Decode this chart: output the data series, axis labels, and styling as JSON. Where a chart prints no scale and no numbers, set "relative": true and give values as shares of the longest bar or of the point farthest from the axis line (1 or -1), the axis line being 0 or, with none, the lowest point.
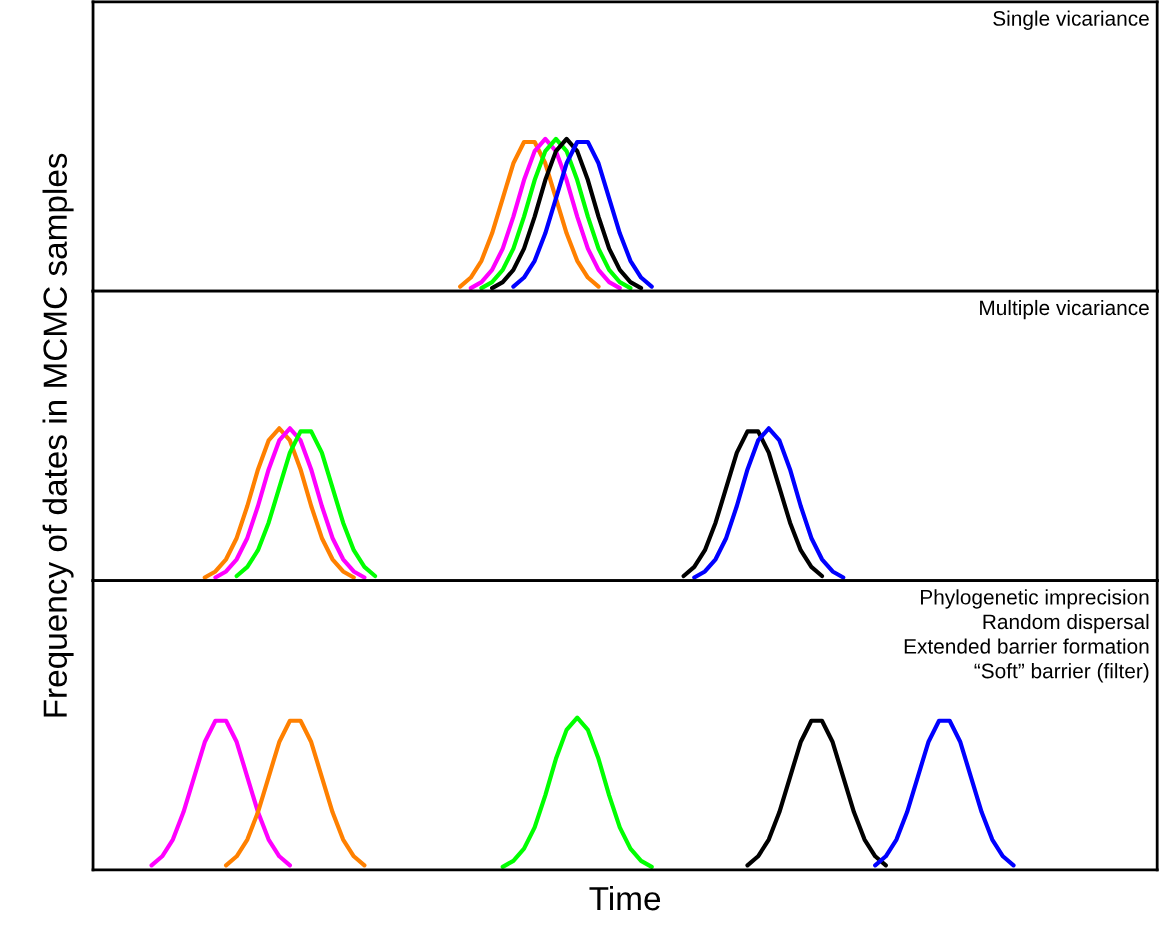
{
  "chart_data": [
    {
      "type": "line",
      "relative": true,
      "annotations": [
        "Single vicariance"
      ],
      "categories": [
        null,
        null,
        null,
        null,
        null,
        null,
        null,
        null,
        null,
        null,
        null,
        null,
        null,
        null,
        null,
        null,
        null,
        null,
        null,
        null,
        null,
        null,
        null,
        null,
        null,
        null,
        null,
        null,
        null,
        null,
        null,
        null,
        null,
        null,
        null,
        null,
        null,
        null,
        null,
        null,
        null,
        null,
        null,
        null,
        null,
        null,
        null,
        null,
        null,
        null,
        null,
        null,
        null,
        null,
        null,
        null,
        null,
        null,
        null,
        null,
        null,
        null,
        null,
        null,
        null,
        null,
        null,
        null,
        null,
        null,
        null,
        null,
        null,
        null,
        null,
        null,
        null,
        null,
        null,
        null,
        null,
        null,
        null,
        null,
        null,
        null,
        null,
        null,
        null,
        null,
        null,
        null,
        null,
        null,
        null,
        null,
        null,
        null,
        null,
        null
      ],
      "series": [
        {
          "color": "#ff8000",
          "values": [
            null,
            null,
            null,
            null,
            null,
            null,
            null,
            null,
            null,
            null,
            null,
            null,
            null,
            null,
            null,
            null,
            null,
            null,
            null,
            null,
            null,
            null,
            null,
            null,
            null,
            null,
            null,
            null,
            null,
            null,
            null,
            null,
            null,
            null,
            0.03,
            0.09,
            0.2,
            0.38,
            0.61,
            0.84,
            0.98,
            0.98,
            0.84,
            0.61,
            0.38,
            0.2,
            0.09,
            0.03,
            null,
            null,
            null,
            null,
            null,
            null,
            null,
            null,
            null,
            null,
            null,
            null,
            null,
            null,
            null,
            null,
            null,
            null,
            null,
            null,
            null,
            null,
            null,
            null,
            null,
            null,
            null,
            null,
            null,
            null,
            null,
            null,
            null,
            null,
            null,
            null,
            null,
            null,
            null,
            null,
            null,
            null,
            null,
            null,
            null,
            null,
            null,
            null,
            null,
            null,
            null,
            null
          ]
        },
        {
          "color": "#ff00ff",
          "values": [
            null,
            null,
            null,
            null,
            null,
            null,
            null,
            null,
            null,
            null,
            null,
            null,
            null,
            null,
            null,
            null,
            null,
            null,
            null,
            null,
            null,
            null,
            null,
            null,
            null,
            null,
            null,
            null,
            null,
            null,
            null,
            null,
            null,
            null,
            null,
            0.02,
            0.06,
            0.14,
            0.28,
            0.49,
            0.73,
            0.92,
            1,
            0.92,
            0.73,
            0.49,
            0.28,
            0.14,
            0.06,
            0.02,
            null,
            null,
            null,
            null,
            null,
            null,
            null,
            null,
            null,
            null,
            null,
            null,
            null,
            null,
            null,
            null,
            null,
            null,
            null,
            null,
            null,
            null,
            null,
            null,
            null,
            null,
            null,
            null,
            null,
            null,
            null,
            null,
            null,
            null,
            null,
            null,
            null,
            null,
            null,
            null,
            null,
            null,
            null,
            null,
            null,
            null,
            null,
            null,
            null,
            null
          ]
        },
        {
          "color": "#00ff00",
          "values": [
            null,
            null,
            null,
            null,
            null,
            null,
            null,
            null,
            null,
            null,
            null,
            null,
            null,
            null,
            null,
            null,
            null,
            null,
            null,
            null,
            null,
            null,
            null,
            null,
            null,
            null,
            null,
            null,
            null,
            null,
            null,
            null,
            null,
            null,
            null,
            null,
            0.02,
            0.06,
            0.14,
            0.28,
            0.49,
            0.73,
            0.92,
            1,
            0.92,
            0.73,
            0.49,
            0.28,
            0.14,
            0.06,
            0.02,
            null,
            null,
            null,
            null,
            null,
            null,
            null,
            null,
            null,
            null,
            null,
            null,
            null,
            null,
            null,
            null,
            null,
            null,
            null,
            null,
            null,
            null,
            null,
            null,
            null,
            null,
            null,
            null,
            null,
            null,
            null,
            null,
            null,
            null,
            null,
            null,
            null,
            null,
            null,
            null,
            null,
            null,
            null,
            null,
            null,
            null,
            null,
            null,
            null
          ]
        },
        {
          "color": "#000000",
          "values": [
            null,
            null,
            null,
            null,
            null,
            null,
            null,
            null,
            null,
            null,
            null,
            null,
            null,
            null,
            null,
            null,
            null,
            null,
            null,
            null,
            null,
            null,
            null,
            null,
            null,
            null,
            null,
            null,
            null,
            null,
            null,
            null,
            null,
            null,
            null,
            null,
            null,
            0.02,
            0.06,
            0.14,
            0.28,
            0.49,
            0.73,
            0.92,
            1,
            0.92,
            0.73,
            0.49,
            0.28,
            0.14,
            0.06,
            0.02,
            null,
            null,
            null,
            null,
            null,
            null,
            null,
            null,
            null,
            null,
            null,
            null,
            null,
            null,
            null,
            null,
            null,
            null,
            null,
            null,
            null,
            null,
            null,
            null,
            null,
            null,
            null,
            null,
            null,
            null,
            null,
            null,
            null,
            null,
            null,
            null,
            null,
            null,
            null,
            null,
            null,
            null,
            null,
            null,
            null,
            null,
            null,
            null
          ]
        },
        {
          "color": "#0000ff",
          "values": [
            null,
            null,
            null,
            null,
            null,
            null,
            null,
            null,
            null,
            null,
            null,
            null,
            null,
            null,
            null,
            null,
            null,
            null,
            null,
            null,
            null,
            null,
            null,
            null,
            null,
            null,
            null,
            null,
            null,
            null,
            null,
            null,
            null,
            null,
            null,
            null,
            null,
            null,
            null,
            0.03,
            0.09,
            0.2,
            0.38,
            0.61,
            0.84,
            0.98,
            0.98,
            0.84,
            0.61,
            0.38,
            0.2,
            0.09,
            0.03,
            null,
            null,
            null,
            null,
            null,
            null,
            null,
            null,
            null,
            null,
            null,
            null,
            null,
            null,
            null,
            null,
            null,
            null,
            null,
            null,
            null,
            null,
            null,
            null,
            null,
            null,
            null,
            null,
            null,
            null,
            null,
            null,
            null,
            null,
            null,
            null,
            null,
            null,
            null,
            null,
            null,
            null,
            null,
            null,
            null,
            null,
            null
          ]
        }
      ]
    },
    {
      "type": "line",
      "relative": true,
      "ylabel": "Frequency of dates in MCMC samples",
      "annotations": [
        "Multiple vicariance"
      ],
      "categories": [
        null,
        null,
        null,
        null,
        null,
        null,
        null,
        null,
        null,
        null,
        null,
        null,
        null,
        null,
        null,
        null,
        null,
        null,
        null,
        null,
        null,
        null,
        null,
        null,
        null,
        null,
        null,
        null,
        null,
        null,
        null,
        null,
        null,
        null,
        null,
        null,
        null,
        null,
        null,
        null,
        null,
        null,
        null,
        null,
        null,
        null,
        null,
        null,
        null,
        null,
        null,
        null,
        null,
        null,
        null,
        null,
        null,
        null,
        null,
        null,
        null,
        null,
        null,
        null,
        null,
        null,
        null,
        null,
        null,
        null,
        null,
        null,
        null,
        null,
        null,
        null,
        null,
        null,
        null,
        null,
        null,
        null,
        null,
        null,
        null,
        null,
        null,
        null,
        null,
        null,
        null,
        null,
        null,
        null,
        null,
        null,
        null,
        null,
        null,
        null
      ],
      "series": [
        {
          "color": "#ff8000",
          "values": [
            null,
            null,
            null,
            null,
            null,
            null,
            null,
            null,
            null,
            null,
            0.02,
            0.06,
            0.14,
            0.28,
            0.49,
            0.73,
            0.92,
            1,
            0.92,
            0.73,
            0.49,
            0.28,
            0.14,
            0.06,
            0.02,
            null,
            null,
            null,
            null,
            null,
            null,
            null,
            null,
            null,
            null,
            null,
            null,
            null,
            null,
            null,
            null,
            null,
            null,
            null,
            null,
            null,
            null,
            null,
            null,
            null,
            null,
            null,
            null,
            null,
            null,
            null,
            null,
            null,
            null,
            null,
            null,
            null,
            null,
            null,
            null,
            null,
            null,
            null,
            null,
            null,
            null,
            null,
            null,
            null,
            null,
            null,
            null,
            null,
            null,
            null,
            null,
            null,
            null,
            null,
            null,
            null,
            null,
            null,
            null,
            null,
            null,
            null,
            null,
            null,
            null,
            null,
            null,
            null,
            null,
            null
          ]
        },
        {
          "color": "#ff00ff",
          "values": [
            null,
            null,
            null,
            null,
            null,
            null,
            null,
            null,
            null,
            null,
            null,
            0.02,
            0.06,
            0.14,
            0.28,
            0.49,
            0.73,
            0.92,
            1,
            0.92,
            0.73,
            0.49,
            0.28,
            0.14,
            0.06,
            0.02,
            null,
            null,
            null,
            null,
            null,
            null,
            null,
            null,
            null,
            null,
            null,
            null,
            null,
            null,
            null,
            null,
            null,
            null,
            null,
            null,
            null,
            null,
            null,
            null,
            null,
            null,
            null,
            null,
            null,
            null,
            null,
            null,
            null,
            null,
            null,
            null,
            null,
            null,
            null,
            null,
            null,
            null,
            null,
            null,
            null,
            null,
            null,
            null,
            null,
            null,
            null,
            null,
            null,
            null,
            null,
            null,
            null,
            null,
            null,
            null,
            null,
            null,
            null,
            null,
            null,
            null,
            null,
            null,
            null,
            null,
            null,
            null,
            null,
            null
          ]
        },
        {
          "color": "#00ff00",
          "values": [
            null,
            null,
            null,
            null,
            null,
            null,
            null,
            null,
            null,
            null,
            null,
            null,
            null,
            0.03,
            0.09,
            0.2,
            0.38,
            0.61,
            0.84,
            0.98,
            0.98,
            0.84,
            0.61,
            0.38,
            0.2,
            0.09,
            0.03,
            null,
            null,
            null,
            null,
            null,
            null,
            null,
            null,
            null,
            null,
            null,
            null,
            null,
            null,
            null,
            null,
            null,
            null,
            null,
            null,
            null,
            null,
            null,
            null,
            null,
            null,
            null,
            null,
            null,
            null,
            null,
            null,
            null,
            null,
            null,
            null,
            null,
            null,
            null,
            null,
            null,
            null,
            null,
            null,
            null,
            null,
            null,
            null,
            null,
            null,
            null,
            null,
            null,
            null,
            null,
            null,
            null,
            null,
            null,
            null,
            null,
            null,
            null,
            null,
            null,
            null,
            null,
            null,
            null,
            null,
            null,
            null,
            null
          ]
        },
        {
          "color": "#000000",
          "values": [
            null,
            null,
            null,
            null,
            null,
            null,
            null,
            null,
            null,
            null,
            null,
            null,
            null,
            null,
            null,
            null,
            null,
            null,
            null,
            null,
            null,
            null,
            null,
            null,
            null,
            null,
            null,
            null,
            null,
            null,
            null,
            null,
            null,
            null,
            null,
            null,
            null,
            null,
            null,
            null,
            null,
            null,
            null,
            null,
            null,
            null,
            null,
            null,
            null,
            null,
            null,
            null,
            null,
            null,
            null,
            0.03,
            0.09,
            0.2,
            0.38,
            0.61,
            0.84,
            0.98,
            0.98,
            0.84,
            0.61,
            0.38,
            0.2,
            0.09,
            0.03,
            null,
            null,
            null,
            null,
            null,
            null,
            null,
            null,
            null,
            null,
            null,
            null,
            null,
            null,
            null,
            null,
            null,
            null,
            null,
            null,
            null,
            null,
            null,
            null,
            null,
            null,
            null,
            null,
            null,
            null,
            null
          ]
        },
        {
          "color": "#0000ff",
          "values": [
            null,
            null,
            null,
            null,
            null,
            null,
            null,
            null,
            null,
            null,
            null,
            null,
            null,
            null,
            null,
            null,
            null,
            null,
            null,
            null,
            null,
            null,
            null,
            null,
            null,
            null,
            null,
            null,
            null,
            null,
            null,
            null,
            null,
            null,
            null,
            null,
            null,
            null,
            null,
            null,
            null,
            null,
            null,
            null,
            null,
            null,
            null,
            null,
            null,
            null,
            null,
            null,
            null,
            null,
            null,
            null,
            0.02,
            0.06,
            0.14,
            0.28,
            0.49,
            0.73,
            0.92,
            1,
            0.92,
            0.73,
            0.49,
            0.28,
            0.14,
            0.06,
            0.02,
            null,
            null,
            null,
            null,
            null,
            null,
            null,
            null,
            null,
            null,
            null,
            null,
            null,
            null,
            null,
            null,
            null,
            null,
            null,
            null,
            null,
            null,
            null,
            null,
            null,
            null,
            null,
            null,
            null
          ]
        }
      ]
    },
    {
      "type": "line",
      "relative": true,
      "xlabel": "Time",
      "annotations": [
        "Phylogenetic imprecision",
        "Random dispersal",
        "Extended barrier formation",
        "“Soft” barrier (filter)"
      ],
      "categories": [
        null,
        null,
        null,
        null,
        null,
        null,
        null,
        null,
        null,
        null,
        null,
        null,
        null,
        null,
        null,
        null,
        null,
        null,
        null,
        null,
        null,
        null,
        null,
        null,
        null,
        null,
        null,
        null,
        null,
        null,
        null,
        null,
        null,
        null,
        null,
        null,
        null,
        null,
        null,
        null,
        null,
        null,
        null,
        null,
        null,
        null,
        null,
        null,
        null,
        null,
        null,
        null,
        null,
        null,
        null,
        null,
        null,
        null,
        null,
        null,
        null,
        null,
        null,
        null,
        null,
        null,
        null,
        null,
        null,
        null,
        null,
        null,
        null,
        null,
        null,
        null,
        null,
        null,
        null,
        null,
        null,
        null,
        null,
        null,
        null,
        null,
        null,
        null,
        null,
        null,
        null,
        null,
        null,
        null,
        null,
        null,
        null,
        null,
        null,
        null
      ],
      "series": [
        {
          "color": "#ff00ff",
          "values": [
            null,
            null,
            null,
            null,
            null,
            0.03,
            0.09,
            0.2,
            0.38,
            0.61,
            0.84,
            0.98,
            0.98,
            0.84,
            0.61,
            0.38,
            0.2,
            0.09,
            0.03,
            null,
            null,
            null,
            null,
            null,
            null,
            null,
            null,
            null,
            null,
            null,
            null,
            null,
            null,
            null,
            null,
            null,
            null,
            null,
            null,
            null,
            null,
            null,
            null,
            null,
            null,
            null,
            null,
            null,
            null,
            null,
            null,
            null,
            null,
            null,
            null,
            null,
            null,
            null,
            null,
            null,
            null,
            null,
            null,
            null,
            null,
            null,
            null,
            null,
            null,
            null,
            null,
            null,
            null,
            null,
            null,
            null,
            null,
            null,
            null,
            null,
            null,
            null,
            null,
            null,
            null,
            null,
            null,
            null,
            null,
            null,
            null,
            null,
            null,
            null,
            null,
            null,
            null,
            null,
            null,
            null
          ]
        },
        {
          "color": "#ff8000",
          "values": [
            null,
            null,
            null,
            null,
            null,
            null,
            null,
            null,
            null,
            null,
            null,
            null,
            0.03,
            0.09,
            0.2,
            0.38,
            0.61,
            0.84,
            0.98,
            0.98,
            0.84,
            0.61,
            0.38,
            0.2,
            0.09,
            0.03,
            null,
            null,
            null,
            null,
            null,
            null,
            null,
            null,
            null,
            null,
            null,
            null,
            null,
            null,
            null,
            null,
            null,
            null,
            null,
            null,
            null,
            null,
            null,
            null,
            null,
            null,
            null,
            null,
            null,
            null,
            null,
            null,
            null,
            null,
            null,
            null,
            null,
            null,
            null,
            null,
            null,
            null,
            null,
            null,
            null,
            null,
            null,
            null,
            null,
            null,
            null,
            null,
            null,
            null,
            null,
            null,
            null,
            null,
            null,
            null,
            null,
            null,
            null,
            null,
            null,
            null,
            null,
            null,
            null,
            null,
            null,
            null,
            null,
            null
          ]
        },
        {
          "color": "#00ff00",
          "values": [
            null,
            null,
            null,
            null,
            null,
            null,
            null,
            null,
            null,
            null,
            null,
            null,
            null,
            null,
            null,
            null,
            null,
            null,
            null,
            null,
            null,
            null,
            null,
            null,
            null,
            null,
            null,
            null,
            null,
            null,
            null,
            null,
            null,
            null,
            null,
            null,
            null,
            null,
            0.02,
            0.06,
            0.14,
            0.28,
            0.49,
            0.73,
            0.92,
            1,
            0.92,
            0.73,
            0.49,
            0.28,
            0.14,
            0.06,
            0.02,
            null,
            null,
            null,
            null,
            null,
            null,
            null,
            null,
            null,
            null,
            null,
            null,
            null,
            null,
            null,
            null,
            null,
            null,
            null,
            null,
            null,
            null,
            null,
            null,
            null,
            null,
            null,
            null,
            null,
            null,
            null,
            null,
            null,
            null,
            null,
            null,
            null,
            null,
            null,
            null,
            null,
            null,
            null,
            null,
            null,
            null,
            null
          ]
        },
        {
          "color": "#000000",
          "values": [
            null,
            null,
            null,
            null,
            null,
            null,
            null,
            null,
            null,
            null,
            null,
            null,
            null,
            null,
            null,
            null,
            null,
            null,
            null,
            null,
            null,
            null,
            null,
            null,
            null,
            null,
            null,
            null,
            null,
            null,
            null,
            null,
            null,
            null,
            null,
            null,
            null,
            null,
            null,
            null,
            null,
            null,
            null,
            null,
            null,
            null,
            null,
            null,
            null,
            null,
            null,
            null,
            null,
            null,
            null,
            null,
            null,
            null,
            null,
            null,
            null,
            0.03,
            0.09,
            0.2,
            0.38,
            0.61,
            0.84,
            0.98,
            0.98,
            0.84,
            0.61,
            0.38,
            0.2,
            0.09,
            0.03,
            null,
            null,
            null,
            null,
            null,
            null,
            null,
            null,
            null,
            null,
            null,
            null,
            null,
            null,
            null,
            null,
            null,
            null,
            null,
            null,
            null,
            null,
            null,
            null,
            null
          ]
        },
        {
          "color": "#0000ff",
          "values": [
            null,
            null,
            null,
            null,
            null,
            null,
            null,
            null,
            null,
            null,
            null,
            null,
            null,
            null,
            null,
            null,
            null,
            null,
            null,
            null,
            null,
            null,
            null,
            null,
            null,
            null,
            null,
            null,
            null,
            null,
            null,
            null,
            null,
            null,
            null,
            null,
            null,
            null,
            null,
            null,
            null,
            null,
            null,
            null,
            null,
            null,
            null,
            null,
            null,
            null,
            null,
            null,
            null,
            null,
            null,
            null,
            null,
            null,
            null,
            null,
            null,
            null,
            null,
            null,
            null,
            null,
            null,
            null,
            null,
            null,
            null,
            null,
            null,
            0.03,
            0.09,
            0.2,
            0.38,
            0.61,
            0.84,
            0.98,
            0.98,
            0.84,
            0.61,
            0.38,
            0.2,
            0.09,
            0.03,
            null,
            null,
            null,
            null,
            null,
            null,
            null,
            null,
            null,
            null,
            null,
            null,
            null
          ]
        }
      ]
    }
  ]
}
